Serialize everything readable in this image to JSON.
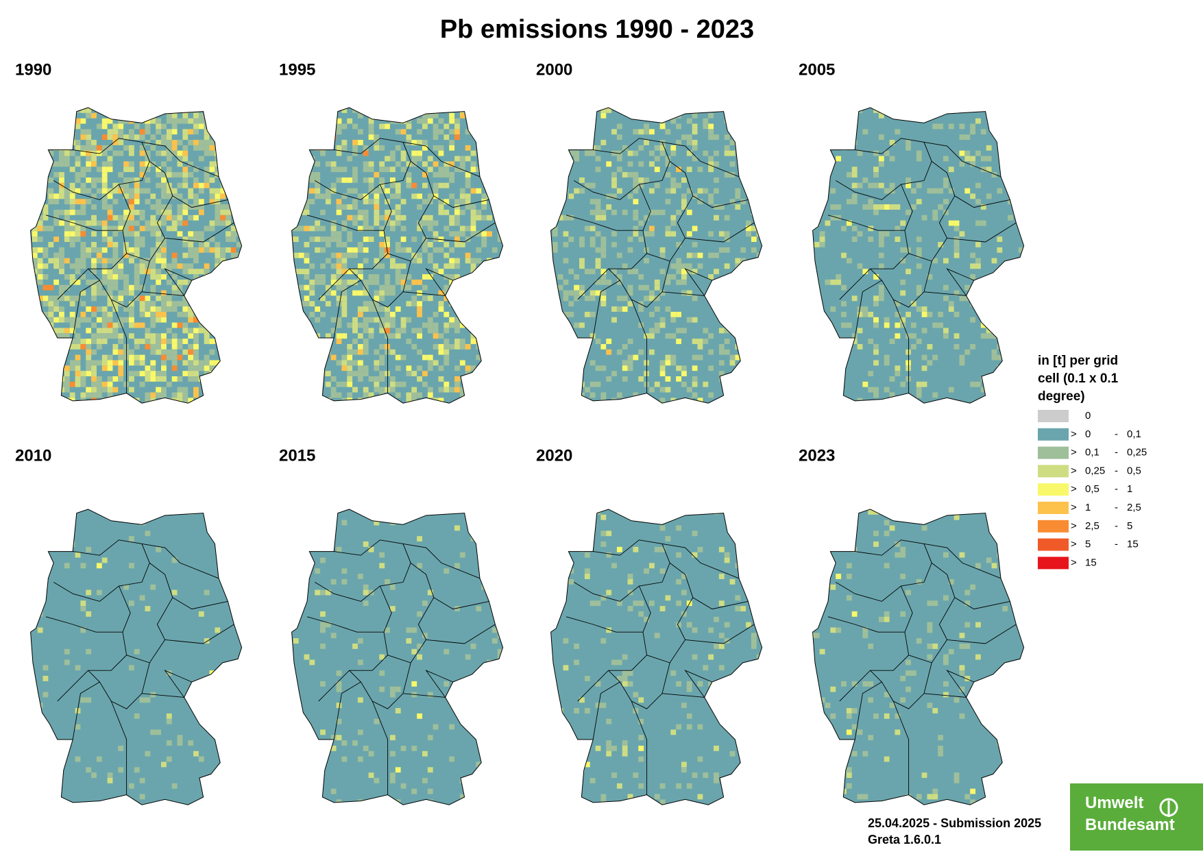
{
  "title": "Pb emissions 1990 - 2023",
  "maps": [
    {
      "year": "1990"
    },
    {
      "year": "1995"
    },
    {
      "year": "2000"
    },
    {
      "year": "2005"
    },
    {
      "year": "2010"
    },
    {
      "year": "2015"
    },
    {
      "year": "2020"
    },
    {
      "year": "2023"
    }
  ],
  "legend": {
    "title_lines": [
      "in [t] per grid",
      "cell (0.1 x 0.1",
      "degree)"
    ],
    "items": [
      {
        "color": "#cccccc",
        "from": "0"
      },
      {
        "color": "#6aa5ad",
        "prefix": ">",
        "from": "0",
        "sep": "-",
        "to": "0,1"
      },
      {
        "color": "#9fbf9a",
        "prefix": ">",
        "from": "0,1",
        "sep": "-",
        "to": "0,25"
      },
      {
        "color": "#cfdd82",
        "prefix": ">",
        "from": "0,25",
        "sep": "-",
        "to": "0,5"
      },
      {
        "color": "#f8f86a",
        "prefix": ">",
        "from": "0,5",
        "sep": "-",
        "to": "1"
      },
      {
        "color": "#fcc24c",
        "prefix": ">",
        "from": "1",
        "sep": "-",
        "to": "2,5"
      },
      {
        "color": "#f98c32",
        "prefix": ">",
        "from": "2,5",
        "sep": "-",
        "to": "5"
      },
      {
        "color": "#f05a28",
        "prefix": ">",
        "from": "5",
        "sep": "-",
        "to": "15"
      },
      {
        "color": "#e8141c",
        "prefix": ">",
        "from": "15"
      }
    ]
  },
  "footer": [
    "25.04.2025 - Submission 2025",
    "Greta 1.6.0.1"
  ],
  "logo": [
    "Umwelt",
    "Bundesamt"
  ]
}
